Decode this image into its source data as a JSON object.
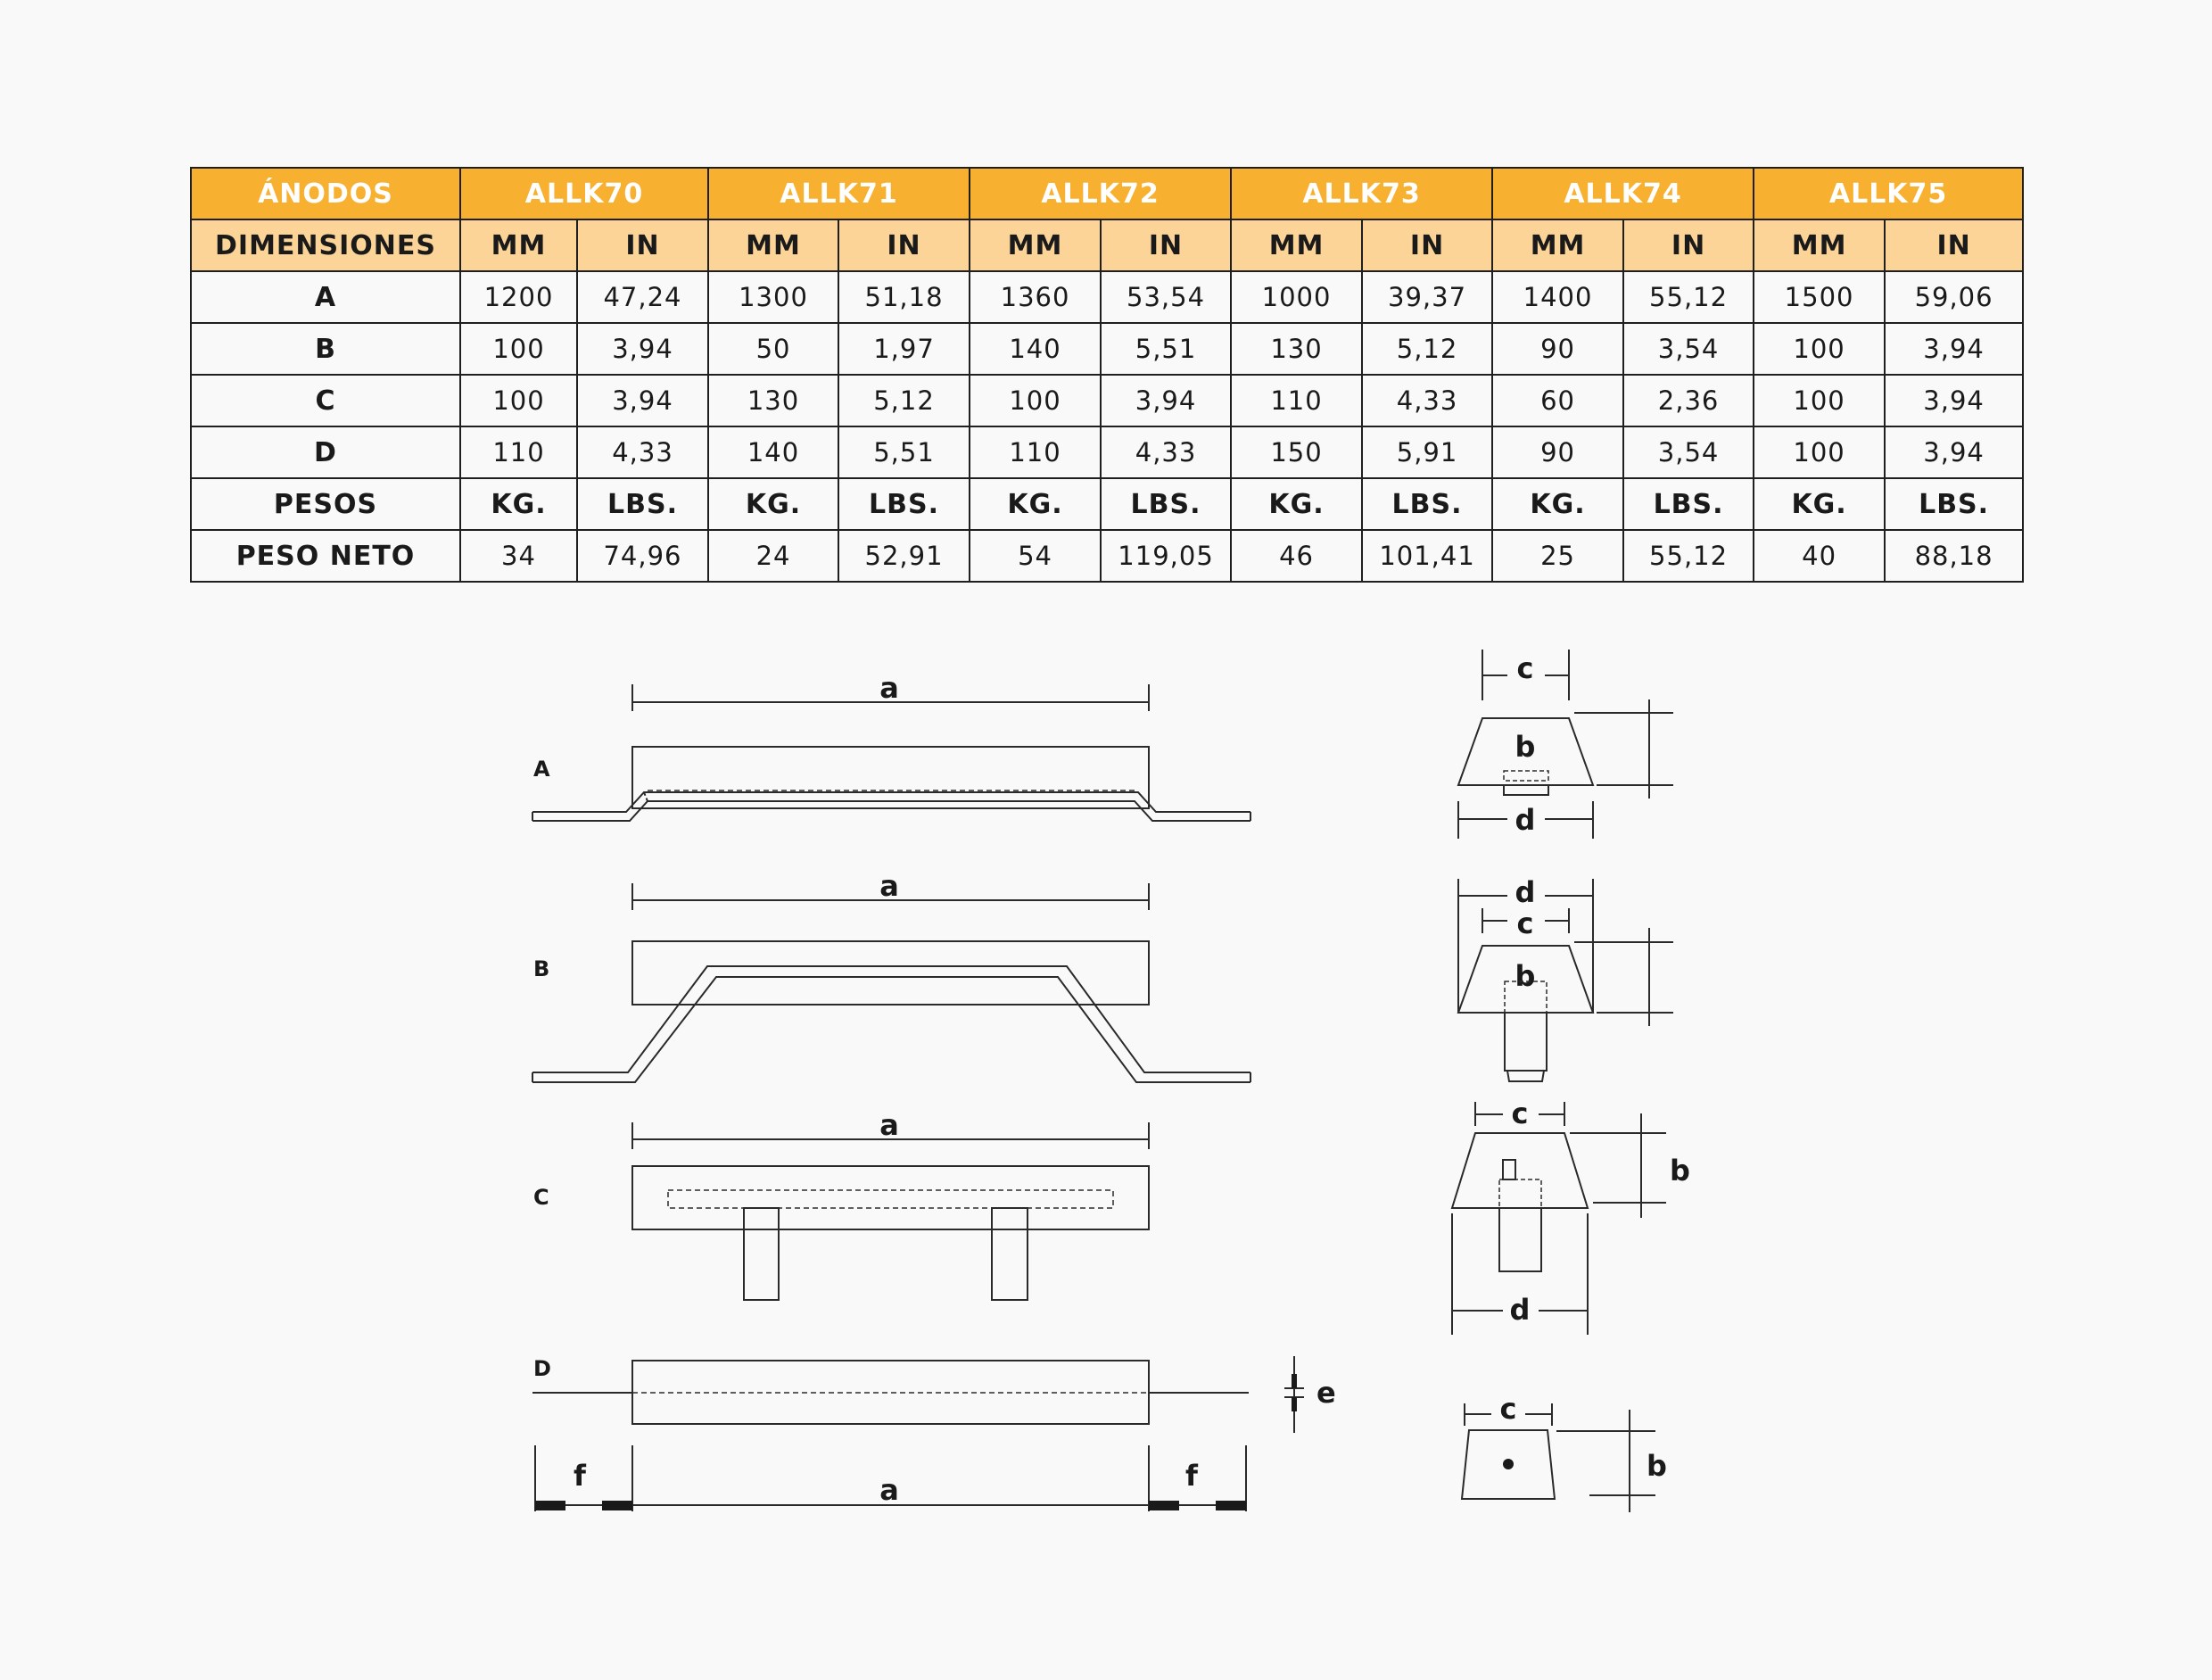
{
  "table": {
    "corner_label": "ÁNODOS",
    "models": [
      "ALLK70",
      "ALLK71",
      "ALLK72",
      "ALLK73",
      "ALLK74",
      "ALLK75"
    ],
    "dimensions_label": "DIMENSIONES",
    "unit_mm": "MM",
    "unit_in": "IN",
    "dimension_rows": [
      {
        "label": "A",
        "values": [
          "1200",
          "47,24",
          "1300",
          "51,18",
          "1360",
          "53,54",
          "1000",
          "39,37",
          "1400",
          "55,12",
          "1500",
          "59,06"
        ]
      },
      {
        "label": "B",
        "values": [
          "100",
          "3,94",
          "50",
          "1,97",
          "140",
          "5,51",
          "130",
          "5,12",
          "90",
          "3,54",
          "100",
          "3,94"
        ]
      },
      {
        "label": "C",
        "values": [
          "100",
          "3,94",
          "130",
          "5,12",
          "100",
          "3,94",
          "110",
          "4,33",
          "60",
          "2,36",
          "100",
          "3,94"
        ]
      },
      {
        "label": "D",
        "values": [
          "110",
          "4,33",
          "140",
          "5,51",
          "110",
          "4,33",
          "150",
          "5,91",
          "90",
          "3,54",
          "100",
          "3,94"
        ]
      }
    ],
    "weights_label": "PESOS",
    "unit_kg": "KG.",
    "unit_lbs": "LBS.",
    "net_weight": {
      "label": "PESO NETO",
      "values": [
        "34",
        "74,96",
        "24",
        "52,91",
        "54",
        "119,05",
        "46",
        "101,41",
        "25",
        "55,12",
        "40",
        "88,18"
      ]
    }
  },
  "drawings": {
    "type_labels": [
      "A",
      "B",
      "C",
      "D"
    ],
    "dim_a": "a",
    "dim_b": "b",
    "dim_c": "c",
    "dim_d": "d",
    "dim_e": "e",
    "dim_f": "f"
  }
}
